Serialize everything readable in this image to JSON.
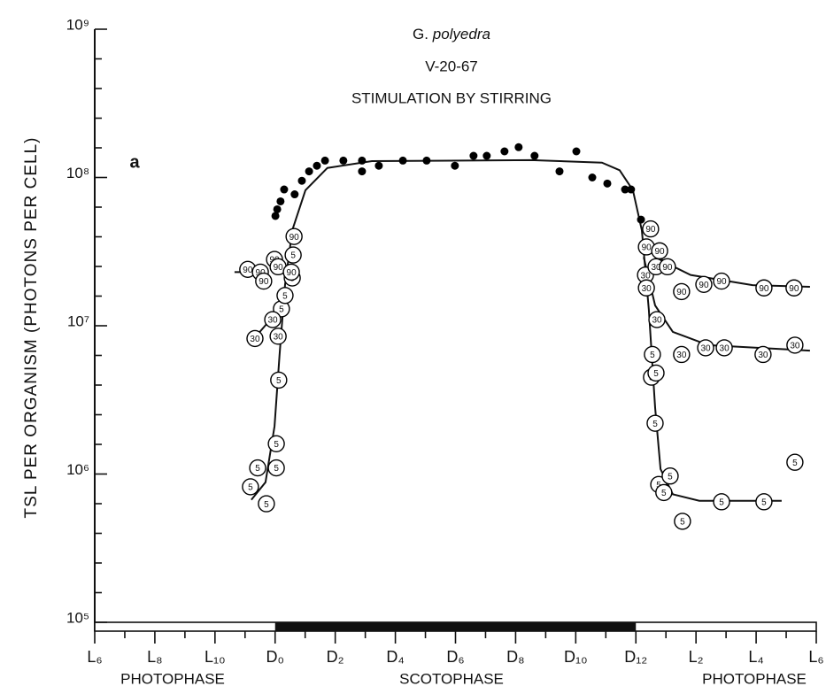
{
  "chart_data": {
    "type": "scatter",
    "species": {
      "genus": "G.",
      "name": "polyedra"
    },
    "date": "V-20-67",
    "title": "STIMULATION BY STIRRING",
    "panel": "a",
    "ylabel": "TSL PER ORGANISM (PHOTONS PER CELL)",
    "log_y": true,
    "xlim": [
      0,
      24
    ],
    "ylim": [
      100000,
      1000000000
    ],
    "xticks": [
      {
        "value": 0,
        "label": "L₆"
      },
      {
        "value": 2,
        "label": "L₈"
      },
      {
        "value": 4,
        "label": "L₁₀"
      },
      {
        "value": 6,
        "label": "D₀"
      },
      {
        "value": 8,
        "label": "D₂"
      },
      {
        "value": 10,
        "label": "D₄"
      },
      {
        "value": 12,
        "label": "D₆"
      },
      {
        "value": 14,
        "label": "D₈"
      },
      {
        "value": 16,
        "label": "D₁₀"
      },
      {
        "value": 18,
        "label": "D₁₂"
      },
      {
        "value": 20,
        "label": "L₂"
      },
      {
        "value": 22,
        "label": "L₄"
      },
      {
        "value": 24,
        "label": "L₆"
      }
    ],
    "yticks": [
      {
        "value": 100000,
        "label": "10⁵"
      },
      {
        "value": 1000000,
        "label": "10⁶"
      },
      {
        "value": 10000000,
        "label": "10⁷"
      },
      {
        "value": 100000000,
        "label": "10⁸"
      },
      {
        "value": 1000000000,
        "label": "10⁹"
      }
    ],
    "dark_period": [
      6,
      18
    ],
    "phase_labels": [
      "PHOTOPHASE",
      "SCOTOPHASE",
      "PHOTOPHASE"
    ],
    "series": [
      {
        "name": null,
        "color": "#000000",
        "marker": "dot",
        "x": [
          6.01,
          6.07,
          6.18,
          6.3,
          6.65,
          6.89,
          7.13,
          7.39,
          7.66,
          8.27,
          8.89,
          8.89,
          9.45,
          10.25,
          11.04,
          11.98,
          12.6,
          13.04,
          13.63,
          14.1,
          14.63,
          15.46,
          16.02,
          16.55,
          17.05,
          17.64,
          17.84,
          18.17
        ],
        "values": [
          55000000,
          61000000,
          69000000,
          83000000,
          77000000,
          95000000,
          110000000,
          120000000,
          130000000,
          130000000,
          130000000,
          110000000,
          120000000,
          130000000,
          130000000,
          120000000,
          140000000,
          140000000,
          150000000,
          160000000,
          140000000,
          110000000,
          150000000,
          100000000,
          91000000,
          83000000,
          83000000,
          52000000
        ]
      },
      {
        "name": "5",
        "color": "#000000",
        "marker": "circle",
        "x": [
          5.18,
          5.42,
          5.71,
          6.04,
          6.04,
          6.12,
          6.21,
          6.33,
          6.57,
          6.6,
          18.55,
          18.52,
          18.67,
          18.64,
          18.76,
          18.93,
          19.14,
          19.55,
          20.85,
          22.26,
          23.29
        ],
        "values": [
          820000,
          1100000,
          630000,
          1100000,
          1600000,
          4300000,
          13000000,
          16000000,
          21000000,
          30000000,
          6400000,
          4500000,
          4800000,
          2200000,
          850000,
          750000,
          970000,
          480000,
          650000,
          650000,
          1200000
        ]
      },
      {
        "name": "30",
        "color": "#000000",
        "marker": "circle",
        "x": [
          5.33,
          5.92,
          6.1,
          18.32,
          18.35,
          18.7,
          19.52,
          20.32,
          20.94,
          22.23,
          23.29,
          18.67
        ],
        "values": [
          8200000,
          11000000,
          8500000,
          22000000,
          18000000,
          11000000,
          6400000,
          7100000,
          7100000,
          6400000,
          7400000,
          25000000
        ]
      },
      {
        "name": "90",
        "color": "#000000",
        "marker": "circle",
        "x": [
          5.09,
          5.51,
          5.62,
          5.98,
          6.1,
          6.54,
          6.63,
          18.49,
          18.35,
          18.79,
          19.05,
          19.52,
          20.26,
          20.85,
          22.26,
          23.26
        ],
        "values": [
          24000000,
          23000000,
          20000000,
          28000000,
          25000000,
          23000000,
          40000000,
          45000000,
          34000000,
          32000000,
          25000000,
          17000000,
          19000000,
          20000000,
          18000000,
          18000000
        ]
      }
    ],
    "curves": [
      {
        "x": [
          5.21,
          5.68,
          5.98,
          6.15,
          6.33,
          6.57,
          7.01,
          7.74,
          9.22,
          14.52,
          16.87,
          17.46,
          17.9,
          18.2,
          18.43,
          18.64,
          18.82,
          19.23,
          20.11,
          22.85
        ],
        "values": [
          670000,
          880000,
          2100000,
          6400000,
          19000000,
          44000000,
          82000000,
          116000000,
          129000000,
          131000000,
          126000000,
          112000000,
          82000000,
          44000000,
          12800000,
          2800000,
          1080000,
          730000,
          660000,
          660000
        ]
      },
      {
        "x": [
          18.26,
          18.64,
          19.23,
          20.41,
          23.79
        ],
        "values": [
          29000000,
          13700000,
          9100000,
          7400000,
          6800000
        ]
      },
      {
        "x": [
          18.29,
          18.93,
          19.82,
          21.88,
          23.79
        ],
        "values": [
          38000000,
          27000000,
          22000000,
          18800000,
          18300000
        ]
      },
      {
        "x": [
          4.65,
          5.68
        ],
        "values": [
          23000000,
          23000000
        ]
      },
      {
        "x": [
          5.3,
          5.74,
          6.15
        ],
        "values": [
          8200000,
          10400000,
          14700000
        ]
      }
    ]
  }
}
